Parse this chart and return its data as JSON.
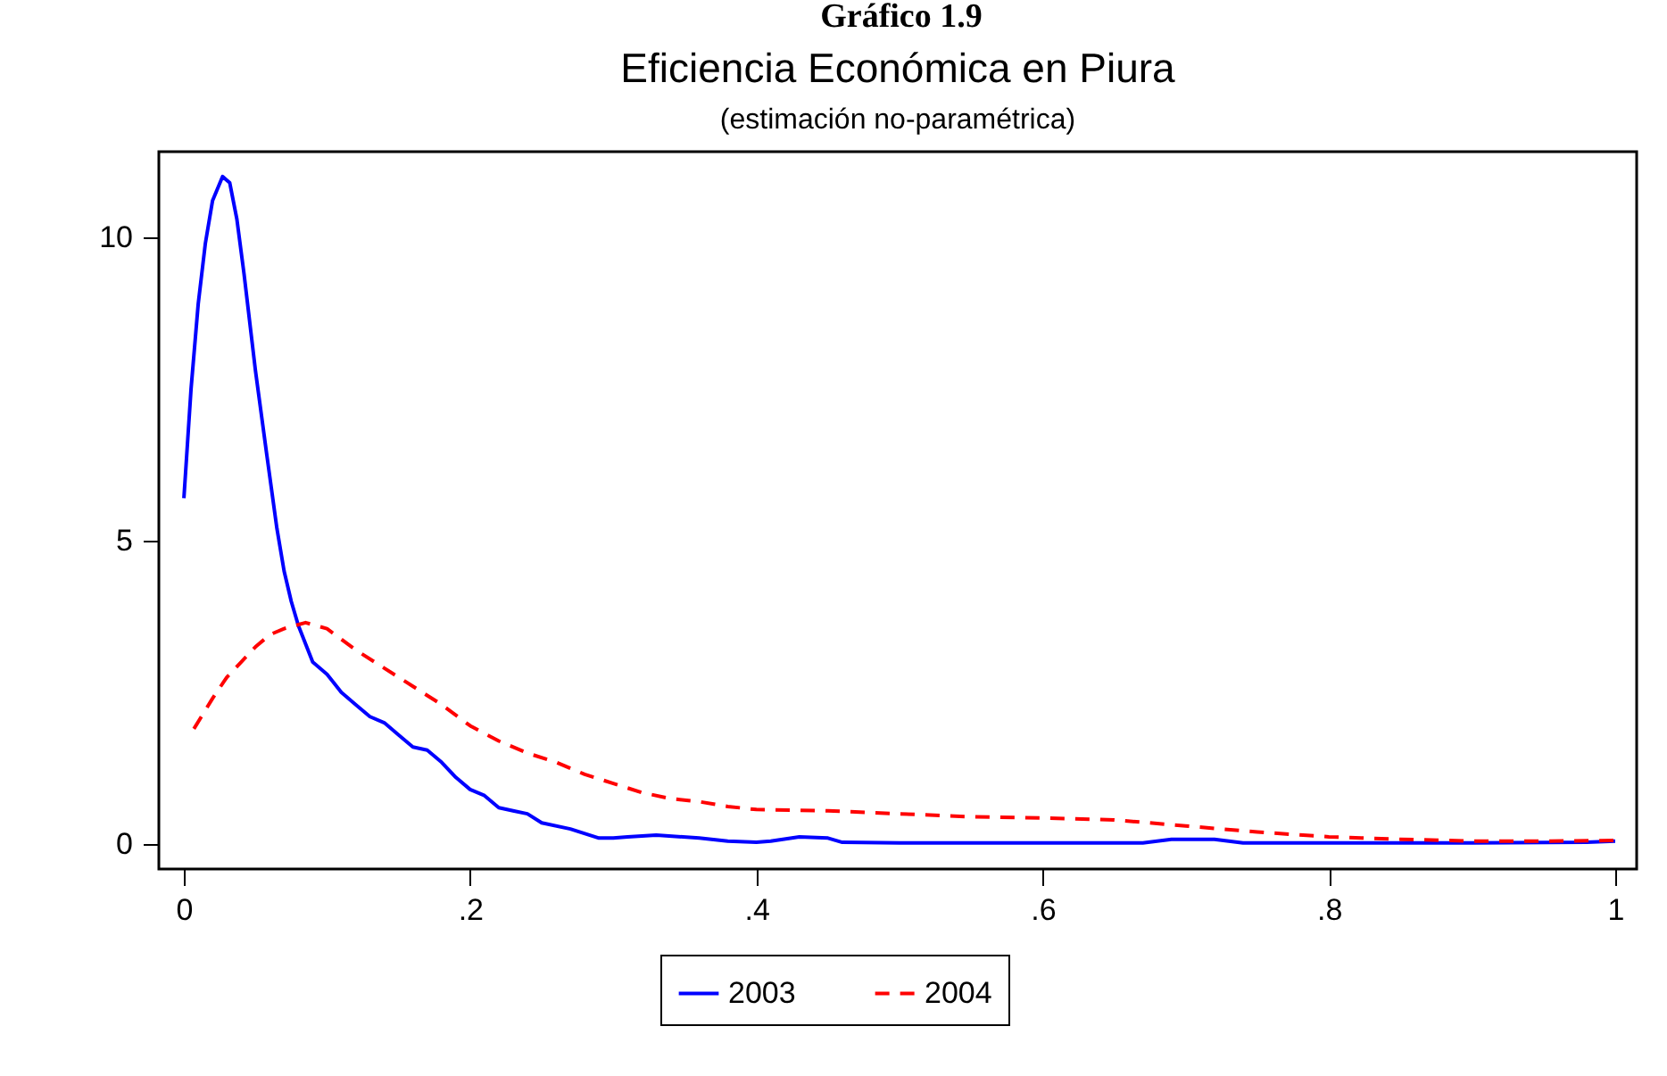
{
  "chart_data": {
    "type": "line",
    "title": "Eficiencia Económica en Piura",
    "subtitle": "(estimación no-paramétrica)",
    "annotations": [
      "Gráfico 1.9"
    ],
    "xlim": [
      -0.0175,
      1.015
    ],
    "ylim": [
      -0.41,
      11.41
    ],
    "xticks": [
      0,
      {
        "value": 0.2,
        "label": ".2"
      },
      {
        "value": 0.4,
        "label": ".4"
      },
      {
        "value": 0.6,
        "label": ".6"
      },
      {
        "value": 0.8,
        "label": ".8"
      },
      1
    ],
    "yticks": [
      0,
      5,
      10
    ],
    "grid": false,
    "legend": "bottom",
    "marker": "none",
    "series": [
      {
        "name": "2003",
        "color": "#0000ff",
        "line_style": "solid",
        "x": [
          0,
          0.005,
          0.01,
          0.015,
          0.02,
          0.027,
          0.032,
          0.037,
          0.042,
          0.05,
          0.058,
          0.065,
          0.07,
          0.075,
          0.08,
          0.09,
          0.1,
          0.11,
          0.12,
          0.13,
          0.14,
          0.15,
          0.16,
          0.17,
          0.18,
          0.19,
          0.2,
          0.21,
          0.22,
          0.23,
          0.24,
          0.25,
          0.27,
          0.29,
          0.3,
          0.31,
          0.33,
          0.36,
          0.38,
          0.4,
          0.41,
          0.43,
          0.45,
          0.46,
          0.5,
          0.6,
          0.67,
          0.69,
          0.72,
          0.74,
          0.8,
          0.9,
          0.98,
          1.0
        ],
        "values": [
          5.7,
          7.5,
          8.9,
          9.9,
          10.6,
          11.0,
          10.9,
          10.3,
          9.4,
          7.8,
          6.4,
          5.2,
          4.5,
          4.0,
          3.6,
          3.0,
          2.8,
          2.5,
          2.3,
          2.1,
          2.0,
          1.8,
          1.6,
          1.55,
          1.35,
          1.1,
          0.9,
          0.8,
          0.6,
          0.55,
          0.5,
          0.35,
          0.25,
          0.1,
          0.1,
          0.12,
          0.15,
          0.1,
          0.05,
          0.03,
          0.05,
          0.12,
          0.1,
          0.03,
          0.02,
          0.02,
          0.02,
          0.08,
          0.08,
          0.02,
          0.02,
          0.02,
          0.03,
          0.05
        ]
      },
      {
        "name": "2004",
        "color": "#ff0000",
        "line_style": "dashed",
        "x": [
          0.007,
          0.02,
          0.03,
          0.04,
          0.05,
          0.06,
          0.07,
          0.085,
          0.1,
          0.12,
          0.14,
          0.16,
          0.18,
          0.2,
          0.22,
          0.24,
          0.26,
          0.28,
          0.3,
          0.32,
          0.34,
          0.36,
          0.38,
          0.4,
          0.45,
          0.5,
          0.55,
          0.6,
          0.65,
          0.7,
          0.75,
          0.8,
          0.85,
          0.9,
          0.95,
          1.0
        ],
        "values": [
          1.9,
          2.4,
          2.75,
          3.0,
          3.25,
          3.45,
          3.55,
          3.65,
          3.55,
          3.2,
          2.9,
          2.6,
          2.3,
          1.95,
          1.7,
          1.5,
          1.35,
          1.15,
          1.0,
          0.85,
          0.75,
          0.7,
          0.62,
          0.57,
          0.55,
          0.5,
          0.45,
          0.43,
          0.4,
          0.3,
          0.2,
          0.12,
          0.08,
          0.05,
          0.05,
          0.06
        ]
      }
    ]
  }
}
